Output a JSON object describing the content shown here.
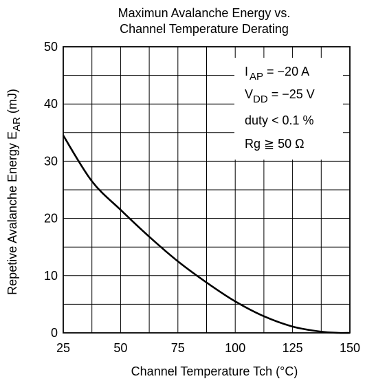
{
  "chart_data": {
    "type": "line",
    "title_line1": "Maximun Avalanche Energy vs.",
    "title_line2": "Channel Temperature Derating",
    "xlabel": "Channel Temperature   Tch  (°C)",
    "ylabel": "Repetive Avalanche Energy   E",
    "ylabel_sub": "AR",
    "ylabel_unit": "  (mJ)",
    "xlim": [
      25,
      150
    ],
    "ylim": [
      0,
      50
    ],
    "x_ticks": [
      25,
      50,
      75,
      100,
      125,
      150
    ],
    "y_ticks": [
      0,
      10,
      20,
      30,
      40,
      50
    ],
    "x_grid_step": 12.5,
    "y_grid_step": 5,
    "grid": true,
    "series": [
      {
        "x": [
          25,
          37.5,
          50,
          62.5,
          75,
          87.5,
          100,
          112.5,
          125,
          137.5,
          145,
          150
        ],
        "y": [
          34.5,
          26.5,
          21.5,
          16.8,
          12.5,
          8.8,
          5.5,
          2.9,
          1.1,
          0.2,
          0,
          0
        ]
      }
    ],
    "annotations": {
      "line1_main": "I",
      "line1_sub": "AP",
      "line1_rest": " = −20 A",
      "line2_main": "V",
      "line2_sub": "DD",
      "line2_rest": " = −25 V",
      "line3": "duty < 0.1 %",
      "line4_pre": "Rg ",
      "line4_sym": "≧",
      "line4_rest": " 50 Ω"
    }
  }
}
